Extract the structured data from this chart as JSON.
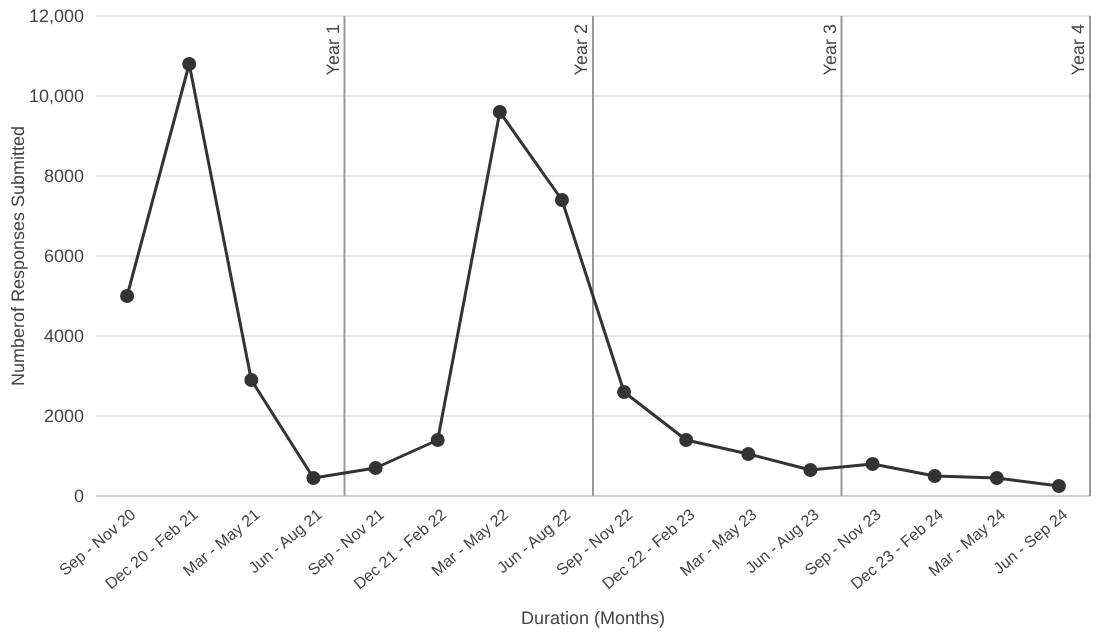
{
  "chart_data": {
    "type": "line",
    "xlabel": "Duration (Months)",
    "ylabel": "Numberof Responses Submitted",
    "categories": [
      "Sep - Nov 20",
      "Dec 20 - Feb 21",
      "Mar - May 21",
      "Jun - Aug 21",
      "Sep - Nov 21",
      "Dec 21 - Feb 22",
      "Mar - May 22",
      "Jun - Aug 22",
      "Sep - Nov 22",
      "Dec 22 - Feb 23",
      "Mar - May 23",
      "Jun - Aug 23",
      "Sep - Nov 23",
      "Dec 23 - Feb 24",
      "Mar - May 24",
      "Jun - Sep 24"
    ],
    "series": [
      {
        "color": "#333333",
        "values": [
          5000,
          10800,
          2900,
          450,
          700,
          1400,
          9600,
          7400,
          2600,
          1400,
          1050,
          650,
          800,
          500,
          450,
          250
        ]
      }
    ],
    "ylim": [
      0,
      12000
    ],
    "yticks": [
      0,
      {
        "value": 2000,
        "label": "2000"
      },
      {
        "value": 4000,
        "label": "4000"
      },
      {
        "value": 6000,
        "label": "6000"
      },
      {
        "value": 8000,
        "label": "8000"
      },
      {
        "value": 10000,
        "label": "10,000"
      },
      {
        "value": 12000,
        "label": "12,000"
      }
    ],
    "grid": "y",
    "marker": "circle",
    "line_style": "solid",
    "annotations": [
      "Year 1",
      "Year 2",
      "Year 3",
      "Year 4"
    ]
  }
}
